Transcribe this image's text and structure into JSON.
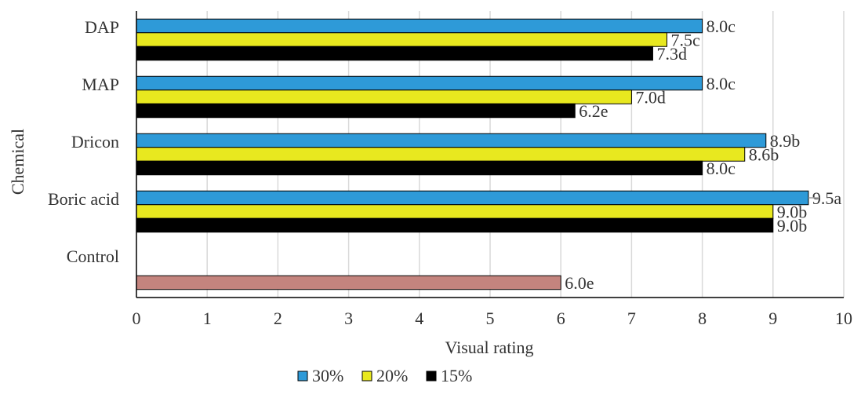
{
  "chart_data": {
    "type": "bar",
    "orientation": "horizontal",
    "xlabel": "Visual rating",
    "ylabel": "Chemical",
    "xlim": [
      0,
      10
    ],
    "x_ticks": [
      "0",
      "1",
      "2",
      "3",
      "4",
      "5",
      "6",
      "7",
      "8",
      "9",
      "10"
    ],
    "grid": "vertical",
    "legend_position": "bottom",
    "categories": [
      "DAP",
      "MAP",
      "Dricon",
      "Boric acid",
      "Control"
    ],
    "series": [
      {
        "name": "30%",
        "color": "#2E9AD8",
        "values": [
          8.0,
          8.0,
          8.9,
          9.5,
          null
        ],
        "labels": [
          "8.0c",
          "8.0c",
          "8.9b",
          "9.5a",
          ""
        ]
      },
      {
        "name": "20%",
        "color": "#E8E81F",
        "values": [
          7.5,
          7.0,
          8.6,
          9.0,
          null
        ],
        "labels": [
          "7.5c",
          "7.0d",
          "8.6b",
          "9.0b",
          ""
        ]
      },
      {
        "name": "15%",
        "color": "#000000",
        "values": [
          7.3,
          6.2,
          8.0,
          9.0,
          null
        ],
        "labels": [
          "7.3d",
          "6.2e",
          "8.0c",
          "9.0b",
          ""
        ]
      }
    ],
    "control": {
      "category": "Control",
      "value": 6.0,
      "label": "6.0e",
      "color": "#C4847E"
    }
  }
}
